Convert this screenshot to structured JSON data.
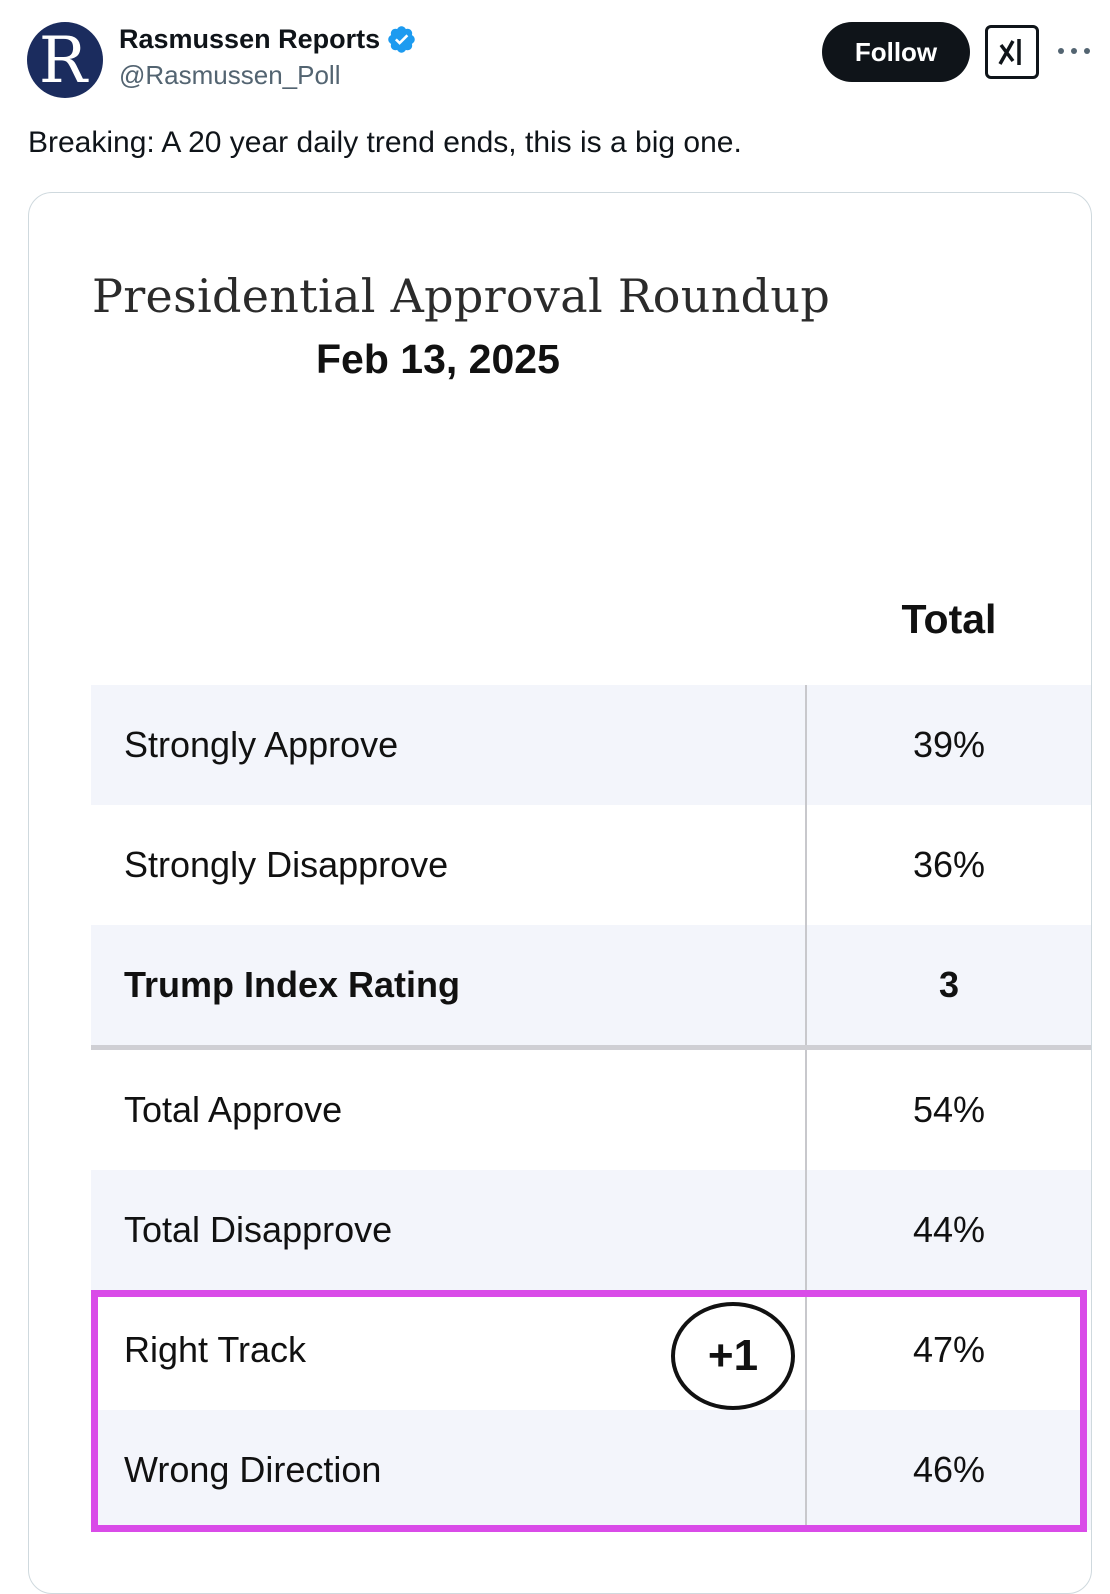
{
  "author": {
    "name": "Rasmussen Reports",
    "handle": "@Rasmussen_Poll",
    "avatar_letter": "R",
    "verified_icon": "verified-badge-icon",
    "verified_color": "#1d9bf0"
  },
  "actions": {
    "follow_label": "Follow",
    "grok_icon": "grok-icon",
    "more_icon": "more-options-icon"
  },
  "tweet": {
    "text": "Breaking: A 20 year daily trend ends, this is a big one."
  },
  "card": {
    "title": "Presidential Approval Roundup",
    "date": "Feb 13, 2025",
    "column_header": "Total",
    "rows": [
      {
        "label": "Strongly Approve",
        "value": "39%"
      },
      {
        "label": "Strongly Disapprove",
        "value": "36%"
      },
      {
        "label": "Trump Index Rating",
        "value": "3"
      },
      {
        "label": "Total Approve",
        "value": "54%"
      },
      {
        "label": "Total Disapprove",
        "value": "44%"
      },
      {
        "label": "Right Track",
        "value": "47%"
      },
      {
        "label": "Wrong Direction",
        "value": "46%"
      }
    ],
    "annotation": "+1",
    "highlight_color": "#d94be8"
  }
}
